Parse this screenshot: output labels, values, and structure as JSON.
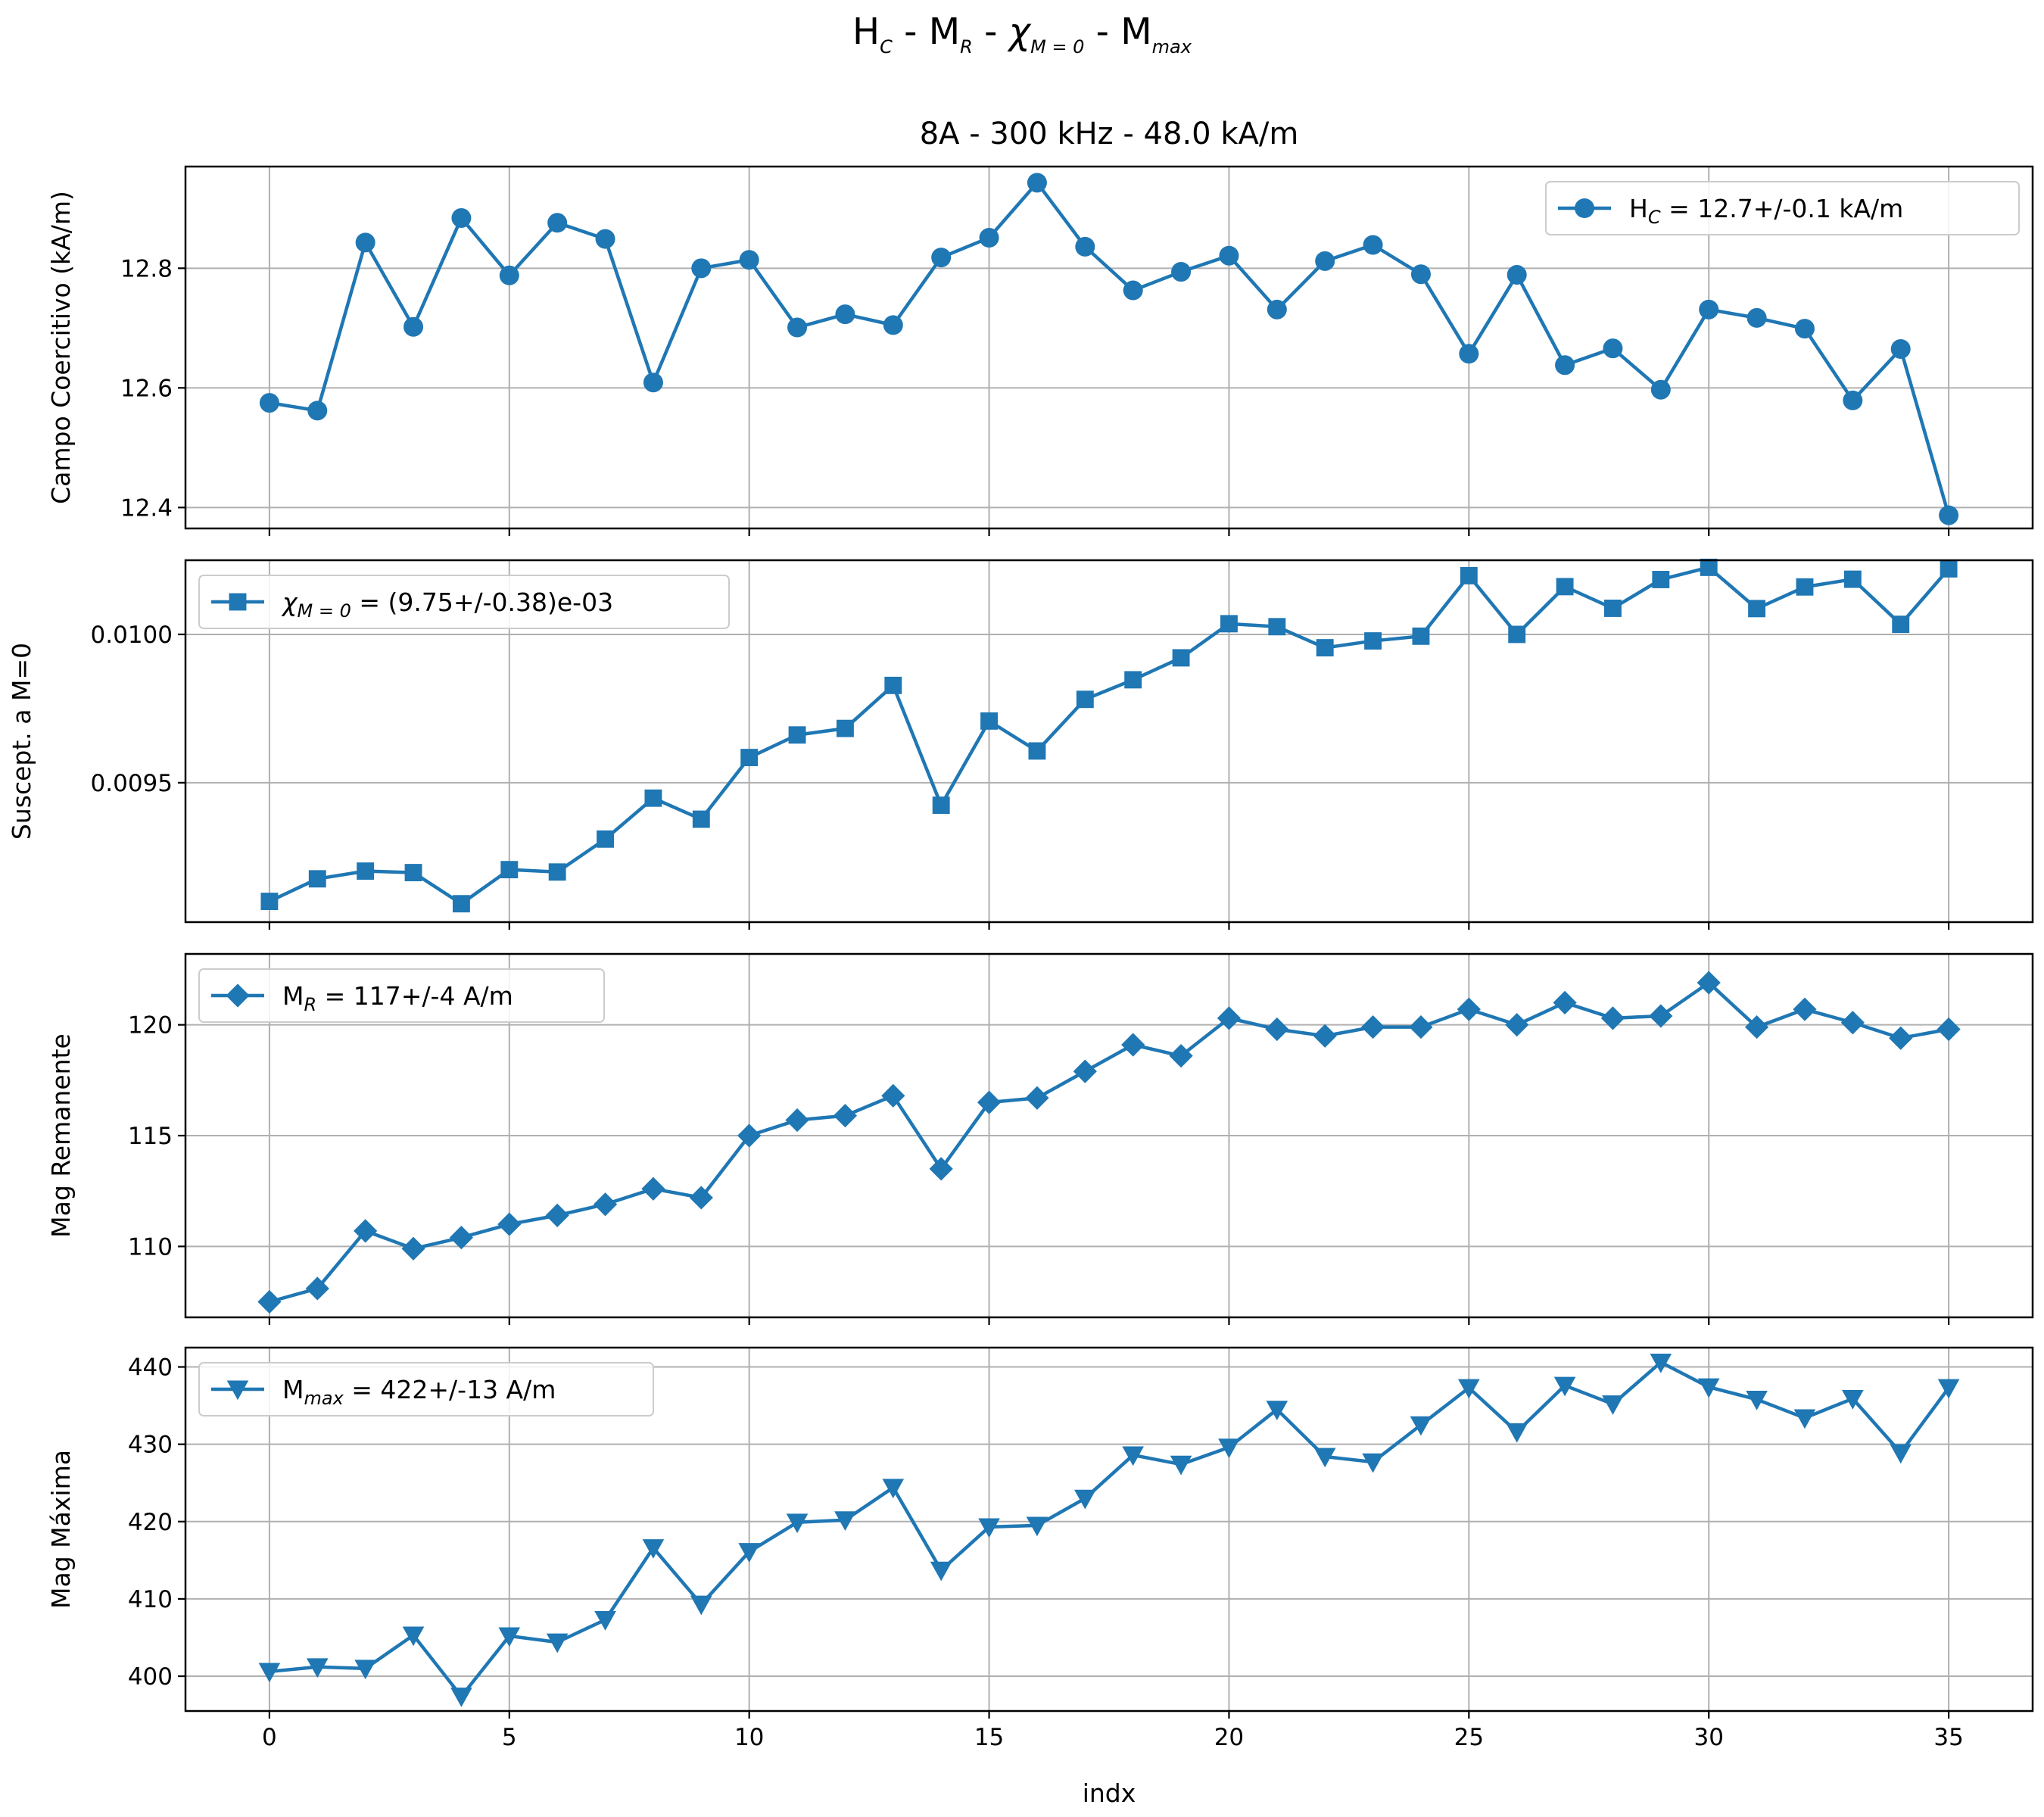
{
  "figure": {
    "suptitle_parts": {
      "h": "H",
      "h_sub": "C",
      "sep1": " - M",
      "m_sub": "R",
      "sep2": " - ",
      "chi": "χ",
      "chi_sub": "M = 0",
      "sep3": " - M",
      "max_sub": "max"
    },
    "subtitle": "8A - 300 kHz - 48.0 kA/m",
    "xlabel": "indx",
    "color": "#1f77b4"
  },
  "chart_data": [
    {
      "type": "line",
      "marker": "circle",
      "ylabel": "Campo Coercitivo (kA/m)",
      "ylim": [
        12.365,
        12.97
      ],
      "yticks": [
        12.4,
        12.6,
        12.8
      ],
      "ytick_labels": [
        "12.4",
        "12.6",
        "12.8"
      ],
      "legend": {
        "position": "top-right",
        "label": "H",
        "sub": "C",
        "rest": " = 12.7+/-0.1 kA/m"
      },
      "x": [
        0,
        1,
        2,
        3,
        4,
        5,
        6,
        7,
        8,
        9,
        10,
        11,
        12,
        13,
        14,
        15,
        16,
        17,
        18,
        19,
        20,
        21,
        22,
        23,
        24,
        25,
        26,
        27,
        28,
        29,
        30,
        31,
        32,
        33,
        34,
        35
      ],
      "values": [
        12.575,
        12.562,
        12.843,
        12.702,
        12.884,
        12.788,
        12.876,
        12.849,
        12.609,
        12.8,
        12.814,
        12.701,
        12.723,
        12.705,
        12.818,
        12.851,
        12.943,
        12.836,
        12.763,
        12.794,
        12.821,
        12.731,
        12.812,
        12.839,
        12.79,
        12.657,
        12.789,
        12.638,
        12.666,
        12.597,
        12.731,
        12.717,
        12.699,
        12.579,
        12.665,
        12.387
      ]
    },
    {
      "type": "line",
      "marker": "square",
      "ylabel": "Suscept. a M=0",
      "ylim": [
        0.00903,
        0.01025
      ],
      "yticks": [
        0.0095,
        0.01
      ],
      "ytick_labels": [
        "0.0095",
        "0.0100"
      ],
      "legend": {
        "position": "top-left",
        "label": "χ",
        "sub": "M = 0",
        "rest": " = (9.75+/-0.38)e-03"
      },
      "x": [
        0,
        1,
        2,
        3,
        4,
        5,
        6,
        7,
        8,
        9,
        10,
        11,
        12,
        13,
        14,
        15,
        16,
        17,
        18,
        19,
        20,
        21,
        22,
        23,
        24,
        25,
        26,
        27,
        28,
        29,
        30,
        31,
        32,
        33,
        34,
        35
      ],
      "values": [
        0.0091,
        0.009176,
        0.009202,
        0.009197,
        0.009092,
        0.009207,
        0.009199,
        0.00931,
        0.009448,
        0.009377,
        0.009585,
        0.009661,
        0.009683,
        0.009828,
        0.009424,
        0.009708,
        0.009607,
        0.009781,
        0.009847,
        0.009921,
        0.010036,
        0.010026,
        0.009955,
        0.009978,
        0.009994,
        0.010198,
        0.01,
        0.010161,
        0.010088,
        0.010185,
        0.010226,
        0.010087,
        0.01016,
        0.010186,
        0.010034,
        0.010221
      ]
    },
    {
      "type": "line",
      "marker": "diamond",
      "ylabel": "Mag Remanente",
      "ylim": [
        106.8,
        123.2
      ],
      "yticks": [
        110,
        115,
        120
      ],
      "ytick_labels": [
        "110",
        "115",
        "120"
      ],
      "legend": {
        "position": "top-left",
        "label": "M",
        "sub": "R",
        "rest": " = 117+/-4 A/m"
      },
      "x": [
        0,
        1,
        2,
        3,
        4,
        5,
        6,
        7,
        8,
        9,
        10,
        11,
        12,
        13,
        14,
        15,
        16,
        17,
        18,
        19,
        20,
        21,
        22,
        23,
        24,
        25,
        26,
        27,
        28,
        29,
        30,
        31,
        32,
        33,
        34,
        35
      ],
      "values": [
        107.5,
        108.1,
        110.7,
        109.9,
        110.4,
        111.0,
        111.4,
        111.9,
        112.6,
        112.2,
        115.0,
        115.7,
        115.9,
        116.8,
        113.5,
        116.5,
        116.7,
        117.9,
        119.1,
        118.6,
        120.3,
        119.8,
        119.5,
        119.9,
        119.9,
        120.7,
        120.0,
        121.0,
        120.3,
        120.4,
        121.9,
        119.9,
        120.7,
        120.1,
        119.4,
        119.8
      ]
    },
    {
      "type": "line",
      "marker": "triangle-down",
      "ylabel": "Mag Máxima",
      "ylim": [
        395.5,
        442.5
      ],
      "yticks": [
        400,
        410,
        420,
        430,
        440
      ],
      "ytick_labels": [
        "400",
        "410",
        "420",
        "430",
        "440"
      ],
      "legend": {
        "position": "top-left",
        "label": "M",
        "sub": "max",
        "rest": " = 422+/-13 A/m"
      },
      "x": [
        0,
        1,
        2,
        3,
        4,
        5,
        6,
        7,
        8,
        9,
        10,
        11,
        12,
        13,
        14,
        15,
        16,
        17,
        18,
        19,
        20,
        21,
        22,
        23,
        24,
        25,
        26,
        27,
        28,
        29,
        30,
        31,
        32,
        33,
        34,
        35
      ],
      "values": [
        400.6,
        401.2,
        401.0,
        405.3,
        397.4,
        405.2,
        404.4,
        407.3,
        416.6,
        409.3,
        416.1,
        419.9,
        420.2,
        424.4,
        413.7,
        419.3,
        419.5,
        423.0,
        428.6,
        427.4,
        429.6,
        434.5,
        428.4,
        427.7,
        432.5,
        437.3,
        431.6,
        437.6,
        435.2,
        440.6,
        437.4,
        435.8,
        433.4,
        435.9,
        428.9,
        437.3
      ]
    }
  ],
  "xaxis": {
    "xlim": [
      -1.75,
      36.75
    ],
    "ticks": [
      0,
      5,
      10,
      15,
      20,
      25,
      30,
      35
    ],
    "tick_labels": [
      "0",
      "5",
      "10",
      "15",
      "20",
      "25",
      "30",
      "35"
    ]
  }
}
